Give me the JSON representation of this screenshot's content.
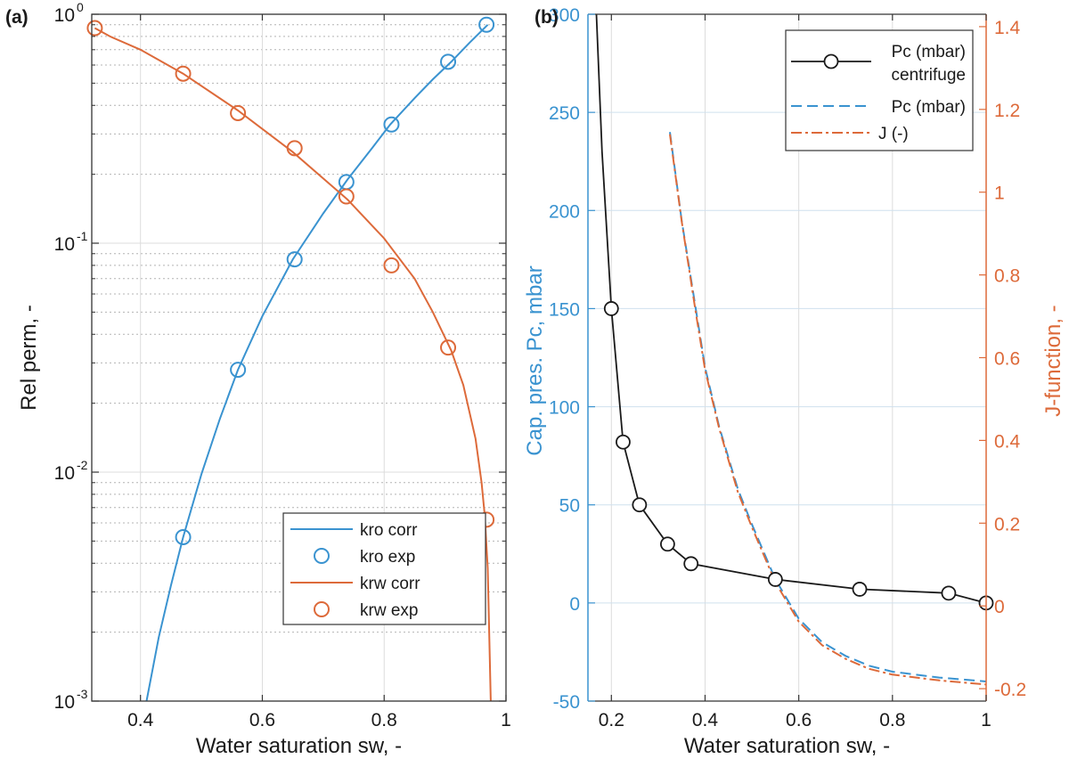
{
  "colors": {
    "blue": "#3a93d0",
    "orange": "#dd6a3a",
    "black": "#1a1a1a",
    "grid": "#dcdcdc",
    "minor_grid": "#b4b4b4",
    "hgrid_right": "#cfe0ee"
  },
  "chart_data": [
    {
      "panel": "(a)",
      "type": "line",
      "xlabel": "Water saturation sw, -",
      "ylabel": "Rel perm, -",
      "xlim": [
        0.32,
        1.0
      ],
      "ylim": [
        0.001,
        1.0
      ],
      "yscale": "log",
      "xticks": [
        0.4,
        0.6,
        0.8,
        1.0
      ],
      "xtick_labels": [
        "0.4",
        "0.6",
        "0.8",
        "1"
      ],
      "yticks": [
        {
          "value": 1.0,
          "base": "10",
          "exp": "0"
        },
        {
          "value": 0.1,
          "base": "10",
          "exp": "-1"
        },
        {
          "value": 0.01,
          "base": "10",
          "exp": "-2"
        },
        {
          "value": 0.001,
          "base": "10",
          "exp": "-3"
        }
      ],
      "legend_position": "bottom-right",
      "series": [
        {
          "name": "kro corr",
          "style": "line",
          "color": "blue",
          "x": [
            0.41,
            0.43,
            0.45,
            0.47,
            0.5,
            0.53,
            0.56,
            0.6,
            0.65,
            0.7,
            0.74,
            0.78,
            0.81,
            0.85,
            0.88,
            0.91,
            0.94,
            0.97
          ],
          "y": [
            0.001,
            0.0019,
            0.0032,
            0.0052,
            0.0098,
            0.017,
            0.028,
            0.048,
            0.085,
            0.135,
            0.19,
            0.26,
            0.33,
            0.43,
            0.52,
            0.62,
            0.75,
            0.9
          ]
        },
        {
          "name": "kro exp",
          "style": "marker",
          "color": "blue",
          "x": [
            0.47,
            0.56,
            0.653,
            0.738,
            0.812,
            0.905,
            0.968
          ],
          "y": [
            0.0052,
            0.028,
            0.085,
            0.185,
            0.33,
            0.62,
            0.9
          ]
        },
        {
          "name": "krw corr",
          "style": "line",
          "color": "orange",
          "x": [
            0.325,
            0.35,
            0.4,
            0.47,
            0.56,
            0.65,
            0.74,
            0.8,
            0.85,
            0.88,
            0.91,
            0.93,
            0.95,
            0.96,
            0.965,
            0.97,
            0.975
          ],
          "y": [
            0.87,
            0.8,
            0.7,
            0.55,
            0.38,
            0.25,
            0.155,
            0.105,
            0.07,
            0.05,
            0.034,
            0.024,
            0.014,
            0.009,
            0.0065,
            0.0038,
            0.001
          ]
        },
        {
          "name": "krw exp",
          "style": "marker",
          "color": "orange",
          "x": [
            0.325,
            0.47,
            0.56,
            0.653,
            0.738,
            0.812,
            0.905,
            0.968
          ],
          "y": [
            0.87,
            0.55,
            0.37,
            0.26,
            0.16,
            0.08,
            0.035,
            0.0062
          ]
        }
      ]
    },
    {
      "panel": "(b)",
      "type": "line",
      "xlabel": "Water saturation sw, -",
      "ylabel": "Cap. pres. Pc, mbar",
      "y2label": "J-function, -",
      "xlim": [
        0.15,
        1.0
      ],
      "ylim": [
        -50,
        300
      ],
      "y2lim": [
        -0.23,
        1.43
      ],
      "xticks": [
        0.2,
        0.4,
        0.6,
        0.8,
        1.0
      ],
      "xtick_labels": [
        "0.2",
        "0.4",
        "0.6",
        "0.8",
        "1"
      ],
      "yticks": [
        -50,
        0,
        50,
        100,
        150,
        200,
        250,
        300
      ],
      "y2ticks": [
        -0.2,
        0,
        0.2,
        0.4,
        0.6,
        0.8,
        1,
        1.2,
        1.4
      ],
      "y2tick_labels": [
        "-0.2",
        "0",
        "0.2",
        "0.4",
        "0.6",
        "0.8",
        "1",
        "1.2",
        "1.4"
      ],
      "legend_position": "top-right",
      "series": [
        {
          "name": "Pc (mbar)",
          "name2": "centrifuge",
          "style": "line-marker",
          "color": "black",
          "axis": "left",
          "x": [
            0.168,
            0.18,
            0.2,
            0.225,
            0.26,
            0.32,
            0.37,
            0.55,
            0.73,
            0.92,
            1.0
          ],
          "y": [
            300,
            230,
            150,
            82,
            50,
            30,
            20,
            12,
            7,
            5,
            0
          ],
          "marker_count": 9
        },
        {
          "name": "Pc (mbar)",
          "style": "dashed",
          "color": "blue",
          "axis": "left",
          "x": [
            0.325,
            0.35,
            0.38,
            0.4,
            0.43,
            0.47,
            0.5,
            0.55,
            0.6,
            0.65,
            0.7,
            0.75,
            0.8,
            0.9,
            1.0
          ],
          "y": [
            240,
            195,
            150,
            120,
            90,
            58,
            40,
            12,
            -8,
            -20,
            -27,
            -32,
            -35,
            -38,
            -40
          ]
        },
        {
          "name": "J (-)",
          "style": "dashdot",
          "color": "orange",
          "axis": "right",
          "x": [
            0.325,
            0.35,
            0.38,
            0.4,
            0.43,
            0.47,
            0.5,
            0.55,
            0.6,
            0.65,
            0.7,
            0.75,
            0.8,
            0.9,
            1.0
          ],
          "y": [
            1.14,
            0.93,
            0.71,
            0.57,
            0.43,
            0.275,
            0.19,
            0.057,
            -0.038,
            -0.095,
            -0.128,
            -0.152,
            -0.166,
            -0.18,
            -0.19
          ]
        }
      ]
    }
  ]
}
